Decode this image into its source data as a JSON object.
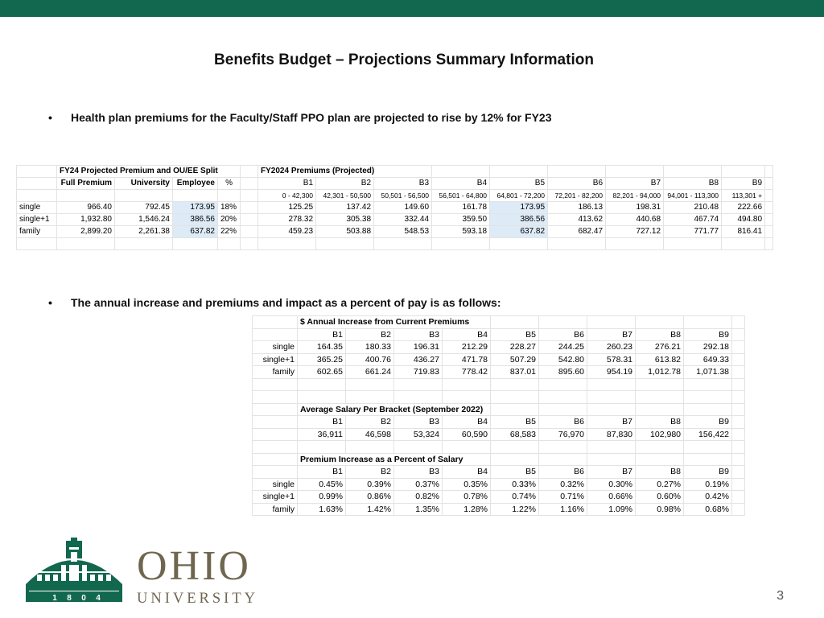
{
  "slide": {
    "title": "Benefits Budget – Projections Summary Information",
    "bullet1": "Health plan premiums for the Faculty/Staff PPO plan are projected to rise by 12% for FY23",
    "bullet2": "The annual increase and premiums and impact as a percent of pay is as follows:",
    "bullet_symbol": "•",
    "page_number": "3"
  },
  "table1": {
    "split_title": "FY24 Projected Premium and OU/EE Split",
    "premiums_title": "FY2024 Premiums (Projected)",
    "split_headers": [
      "Full Premium",
      "University",
      "Employee",
      "%"
    ],
    "brackets": [
      "B1",
      "B2",
      "B3",
      "B4",
      "B5",
      "B6",
      "B7",
      "B8",
      "B9"
    ],
    "ranges": [
      "0 - 42,300",
      "42,301 - 50,500",
      "50,501 - 56,500",
      "56,501 - 64,800",
      "64,801 - 72,200",
      "72,201 - 82,200",
      "82,201 - 94,000",
      "94,001 - 113,300",
      "113,301 +"
    ],
    "rows": [
      {
        "label": "single",
        "full": "966.40",
        "univ": "792.45",
        "emp": "173.95",
        "pct": "18%",
        "values": [
          "125.25",
          "137.42",
          "149.60",
          "161.78",
          "173.95",
          "186.13",
          "198.31",
          "210.48",
          "222.66"
        ]
      },
      {
        "label": "single+1",
        "full": "1,932.80",
        "univ": "1,546.24",
        "emp": "386.56",
        "pct": "20%",
        "values": [
          "278.32",
          "305.38",
          "332.44",
          "359.50",
          "386.56",
          "413.62",
          "440.68",
          "467.74",
          "494.80"
        ]
      },
      {
        "label": "family",
        "full": "2,899.20",
        "univ": "2,261.38",
        "emp": "637.82",
        "pct": "22%",
        "values": [
          "459.23",
          "503.88",
          "548.53",
          "593.18",
          "637.82",
          "682.47",
          "727.12",
          "771.77",
          "816.41"
        ]
      }
    ]
  },
  "table2": {
    "brackets": [
      "B1",
      "B2",
      "B3",
      "B4",
      "B5",
      "B6",
      "B7",
      "B8",
      "B9"
    ],
    "increase": {
      "title": "$ Annual Increase from Current Premiums",
      "rows": [
        {
          "label": "single",
          "values": [
            "164.35",
            "180.33",
            "196.31",
            "212.29",
            "228.27",
            "244.25",
            "260.23",
            "276.21",
            "292.18"
          ]
        },
        {
          "label": "single+1",
          "values": [
            "365.25",
            "400.76",
            "436.27",
            "471.78",
            "507.29",
            "542.80",
            "578.31",
            "613.82",
            "649.33"
          ]
        },
        {
          "label": "family",
          "values": [
            "602.65",
            "661.24",
            "719.83",
            "778.42",
            "837.01",
            "895.60",
            "954.19",
            "1,012.78",
            "1,071.38"
          ]
        }
      ]
    },
    "salary": {
      "title": "Average Salary Per Bracket (September 2022)",
      "values": [
        "36,911",
        "46,598",
        "53,324",
        "60,590",
        "68,583",
        "76,970",
        "87,830",
        "102,980",
        "156,422"
      ]
    },
    "percent": {
      "title": "Premium Increase as a Percent of Salary",
      "rows": [
        {
          "label": "single",
          "values": [
            "0.45%",
            "0.39%",
            "0.37%",
            "0.35%",
            "0.33%",
            "0.32%",
            "0.30%",
            "0.27%",
            "0.19%"
          ]
        },
        {
          "label": "single+1",
          "values": [
            "0.99%",
            "0.86%",
            "0.82%",
            "0.78%",
            "0.74%",
            "0.71%",
            "0.66%",
            "0.60%",
            "0.42%"
          ]
        },
        {
          "label": "family",
          "values": [
            "1.63%",
            "1.42%",
            "1.35%",
            "1.28%",
            "1.22%",
            "1.16%",
            "1.09%",
            "0.98%",
            "0.68%"
          ]
        }
      ]
    }
  },
  "logo": {
    "wordmark": "OHIO",
    "subtext": "UNIVERSITY",
    "year_digits": [
      "1",
      "8",
      "0",
      "4"
    ]
  },
  "colors": {
    "brand_green": "#12684e",
    "highlight": "#ddebf7",
    "logo_text": "#6f6650"
  }
}
